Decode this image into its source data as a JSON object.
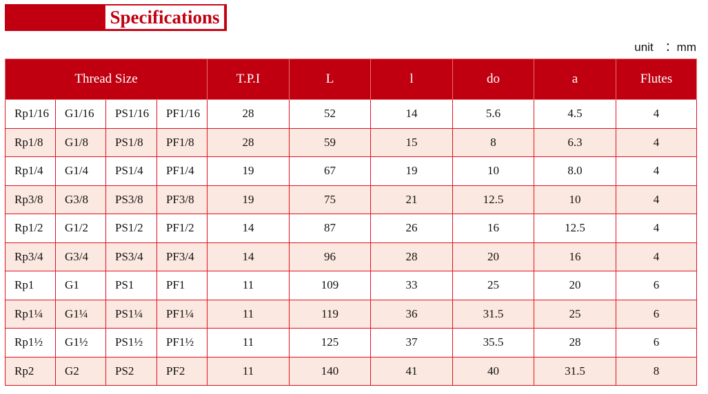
{
  "title": "Specifications",
  "unit_label": "unit　：mm",
  "headers": [
    "Thread Size",
    "T.P.I",
    "L",
    "l",
    "do",
    "a",
    "Flutes"
  ],
  "colors": {
    "header_bg": "#c00010",
    "alt_row_bg": "#fbe8e0",
    "grid": "#e01020"
  },
  "rows": [
    [
      "Rp1/16",
      "G1/16",
      "PS1/16",
      "PF1/16",
      "28",
      "52",
      "14",
      "5.6",
      "4.5",
      "4"
    ],
    [
      "Rp1/8",
      "G1/8",
      "PS1/8",
      "PF1/8",
      "28",
      "59",
      "15",
      "8",
      "6.3",
      "4"
    ],
    [
      "Rp1/4",
      "G1/4",
      "PS1/4",
      "PF1/4",
      "19",
      "67",
      "19",
      "10",
      "8.0",
      "4"
    ],
    [
      "Rp3/8",
      "G3/8",
      "PS3/8",
      "PF3/8",
      "19",
      "75",
      "21",
      "12.5",
      "10",
      "4"
    ],
    [
      "Rp1/2",
      "G1/2",
      "PS1/2",
      "PF1/2",
      "14",
      "87",
      "26",
      "16",
      "12.5",
      "4"
    ],
    [
      "Rp3/4",
      "G3/4",
      "PS3/4",
      "PF3/4",
      "14",
      "96",
      "28",
      "20",
      "16",
      "4"
    ],
    [
      "Rp1",
      "G1",
      "PS1",
      "PF1",
      "11",
      "109",
      "33",
      "25",
      "20",
      "6"
    ],
    [
      "Rp1¼",
      "G1¼",
      "PS1¼",
      "PF1¼",
      "11",
      "119",
      "36",
      "31.5",
      "25",
      "6"
    ],
    [
      "Rp1½",
      "G1½",
      "PS1½",
      "PF1½",
      "11",
      "125",
      "37",
      "35.5",
      "28",
      "6"
    ],
    [
      "Rp2",
      "G2",
      "PS2",
      "PF2",
      "11",
      "140",
      "41",
      "40",
      "31.5",
      "8"
    ]
  ]
}
